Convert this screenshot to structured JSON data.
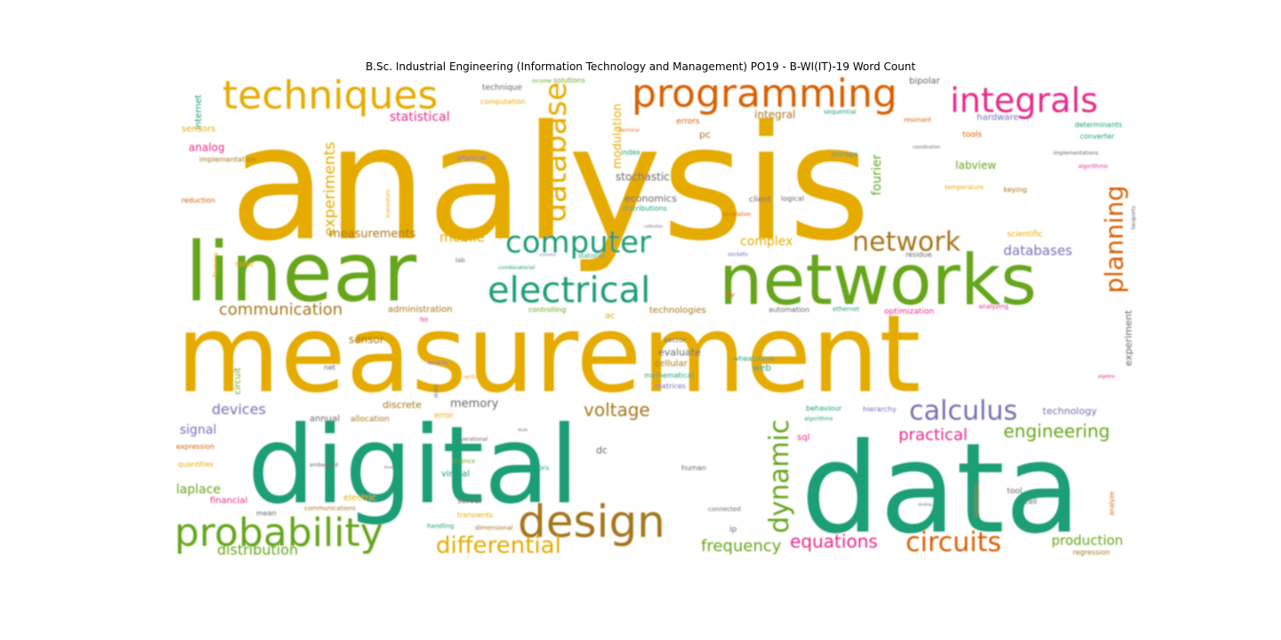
{
  "title": "B.Sc. Industrial Engineering (Information Technology and Management)  PO19 - B-WI(IT)-19 Word Count",
  "palette": {
    "mustard": "#e6ab02",
    "teal": "#1b9e77",
    "green": "#66a61e",
    "orange": "#d95f02",
    "brown": "#a6761d",
    "pink": "#e7298a",
    "purple": "#7570b3",
    "gray": "#666666"
  },
  "words": [
    {
      "text": "analysis",
      "color": "mustard"
    },
    {
      "text": "measurement",
      "color": "mustard"
    },
    {
      "text": "digital",
      "color": "teal"
    },
    {
      "text": "data",
      "color": "teal"
    },
    {
      "text": "linear",
      "color": "green"
    },
    {
      "text": "networks",
      "color": "green"
    },
    {
      "text": "techniques",
      "color": "mustard"
    },
    {
      "text": "programming",
      "color": "orange"
    },
    {
      "text": "integrals",
      "color": "pink"
    },
    {
      "text": "design",
      "color": "brown"
    },
    {
      "text": "probability",
      "color": "green"
    },
    {
      "text": "electrical",
      "color": "teal"
    },
    {
      "text": "computer",
      "color": "teal"
    },
    {
      "text": "network",
      "color": "brown"
    },
    {
      "text": "database",
      "color": "mustard"
    },
    {
      "text": "calculus",
      "color": "purple"
    },
    {
      "text": "circuits",
      "color": "orange"
    },
    {
      "text": "dynamic",
      "color": "green"
    },
    {
      "text": "differential",
      "color": "mustard"
    },
    {
      "text": "planning",
      "color": "orange"
    },
    {
      "text": "voltage",
      "color": "brown"
    },
    {
      "text": "engineering",
      "color": "green"
    },
    {
      "text": "equations",
      "color": "pink"
    },
    {
      "text": "communication",
      "color": "brown"
    },
    {
      "text": "practical",
      "color": "pink"
    },
    {
      "text": "experiments",
      "color": "mustard"
    },
    {
      "text": "frequency",
      "color": "green"
    },
    {
      "text": "production",
      "color": "green"
    },
    {
      "text": "distribution",
      "color": "green"
    },
    {
      "text": "devices",
      "color": "purple"
    },
    {
      "text": "mobile",
      "color": "mustard"
    },
    {
      "text": "measurements",
      "color": "brown"
    },
    {
      "text": "databases",
      "color": "purple"
    },
    {
      "text": "statistical",
      "color": "pink"
    },
    {
      "text": "fourier",
      "color": "green"
    },
    {
      "text": "modulation",
      "color": "mustard"
    },
    {
      "text": "complex",
      "color": "mustard"
    },
    {
      "text": "laplace",
      "color": "green"
    },
    {
      "text": "signal",
      "color": "purple"
    },
    {
      "text": "integral",
      "color": "brown"
    },
    {
      "text": "memory",
      "color": "gray"
    },
    {
      "text": "stochastic",
      "color": "gray"
    },
    {
      "text": "sensor",
      "color": "brown"
    },
    {
      "text": "experiment",
      "color": "gray"
    },
    {
      "text": "labview",
      "color": "green"
    },
    {
      "text": "technology",
      "color": "purple"
    },
    {
      "text": "economics",
      "color": "gray"
    },
    {
      "text": "evaluate",
      "color": "gray"
    },
    {
      "text": "administration",
      "color": "brown"
    },
    {
      "text": "technologies",
      "color": "brown"
    },
    {
      "text": "optimization",
      "color": "pink"
    },
    {
      "text": "hardware",
      "color": "purple"
    },
    {
      "text": "analog",
      "color": "pink"
    },
    {
      "text": "internet",
      "color": "teal"
    },
    {
      "text": "sensors",
      "color": "mustard"
    },
    {
      "text": "implementation",
      "color": "brown"
    },
    {
      "text": "reduction",
      "color": "orange"
    },
    {
      "text": "circuit",
      "color": "green"
    },
    {
      "text": "financial",
      "color": "pink"
    },
    {
      "text": "electric",
      "color": "mustard"
    },
    {
      "text": "discrete",
      "color": "brown"
    },
    {
      "text": "cellular",
      "color": "brown"
    },
    {
      "text": "allocation",
      "color": "brown"
    },
    {
      "text": "annual",
      "color": "gray"
    },
    {
      "text": "error",
      "color": "mustard"
    },
    {
      "text": "virtual",
      "color": "teal"
    },
    {
      "text": "server",
      "color": "gray"
    },
    {
      "text": "dc",
      "color": "gray"
    },
    {
      "text": "pc",
      "color": "brown"
    },
    {
      "text": "sql",
      "color": "pink"
    },
    {
      "text": "web",
      "color": "teal"
    },
    {
      "text": "ac",
      "color": "mustard"
    },
    {
      "text": "ip",
      "color": "gray"
    },
    {
      "text": "tool",
      "color": "gray"
    },
    {
      "text": "cell",
      "color": "gray"
    },
    {
      "text": "mean",
      "color": "gray"
    },
    {
      "text": "solar",
      "color": "mustard"
    },
    {
      "text": "quantities",
      "color": "mustard"
    },
    {
      "text": "expression",
      "color": "orange"
    },
    {
      "text": "bipolar",
      "color": "gray"
    },
    {
      "text": "technique",
      "color": "gray"
    },
    {
      "text": "computation",
      "color": "mustard"
    },
    {
      "text": "solutions",
      "color": "green"
    },
    {
      "text": "errors",
      "color": "orange"
    },
    {
      "text": "sequential",
      "color": "teal"
    },
    {
      "text": "resonant",
      "color": "orange"
    },
    {
      "text": "determinants",
      "color": "teal"
    },
    {
      "text": "converter",
      "color": "teal"
    },
    {
      "text": "tools",
      "color": "orange"
    },
    {
      "text": "physical",
      "color": "purple"
    },
    {
      "text": "index",
      "color": "teal"
    },
    {
      "text": "storage",
      "color": "teal"
    },
    {
      "text": "implementations",
      "color": "gray"
    },
    {
      "text": "algorithmic",
      "color": "pink"
    },
    {
      "text": "temperature",
      "color": "mustard"
    },
    {
      "text": "keying",
      "color": "brown"
    },
    {
      "text": "logical",
      "color": "gray"
    },
    {
      "text": "client",
      "color": "gray"
    },
    {
      "text": "correlation",
      "color": "orange"
    },
    {
      "text": "distributions",
      "color": "teal"
    },
    {
      "text": "scientific",
      "color": "mustard"
    },
    {
      "text": "residue",
      "color": "gray"
    },
    {
      "text": "sockets",
      "color": "purple"
    },
    {
      "text": "statistics",
      "color": "teal"
    },
    {
      "text": "combinatorial",
      "color": "teal"
    },
    {
      "text": "controlling",
      "color": "green"
    },
    {
      "text": "automation",
      "color": "gray"
    },
    {
      "text": "ethernet",
      "color": "teal"
    },
    {
      "text": "analyzing",
      "color": "pink"
    },
    {
      "text": "vector",
      "color": "gray"
    },
    {
      "text": "mathematical",
      "color": "teal"
    },
    {
      "text": "matrices",
      "color": "purple"
    },
    {
      "text": "wheatstone",
      "color": "teal"
    },
    {
      "text": "behaviour",
      "color": "teal"
    },
    {
      "text": "hierarchy",
      "color": "purple"
    },
    {
      "text": "algorithms",
      "color": "teal"
    },
    {
      "text": "capacitors",
      "color": "teal"
    },
    {
      "text": "science",
      "color": "green"
    },
    {
      "text": "dimensional",
      "color": "brown"
    },
    {
      "text": "transients",
      "color": "mustard"
    },
    {
      "text": "communications",
      "color": "brown"
    },
    {
      "text": "handling",
      "color": "teal"
    },
    {
      "text": "human",
      "color": "gray"
    },
    {
      "text": "connected",
      "color": "gray"
    },
    {
      "text": "relational",
      "color": "brown"
    },
    {
      "text": "regression",
      "color": "brown"
    },
    {
      "text": "embedded",
      "color": "gray"
    },
    {
      "text": "security",
      "color": "purple"
    },
    {
      "text": "net",
      "color": "gray"
    },
    {
      "text": "operational",
      "color": "gray"
    },
    {
      "text": "writing",
      "color": "mustard"
    },
    {
      "text": "fet",
      "color": "pink"
    },
    {
      "text": "lab",
      "color": "gray"
    },
    {
      "text": "fly",
      "color": "orange"
    },
    {
      "text": "static",
      "color": "gray"
    },
    {
      "text": "transistors",
      "color": "mustard"
    },
    {
      "text": "financing",
      "color": "mustard"
    },
    {
      "text": "analyze",
      "color": "orange"
    },
    {
      "text": "algebra",
      "color": "pink"
    },
    {
      "text": "twoports",
      "color": "gray"
    },
    {
      "text": "income",
      "color": "green"
    },
    {
      "text": "coordination",
      "color": "gray"
    },
    {
      "text": "technical",
      "color": "orange"
    },
    {
      "text": "calibration",
      "color": "gray"
    },
    {
      "text": "economic",
      "color": "purple"
    },
    {
      "text": "binary",
      "color": "gray"
    },
    {
      "text": "diode",
      "color": "gray"
    },
    {
      "text": "desktop",
      "color": "gray"
    }
  ]
}
